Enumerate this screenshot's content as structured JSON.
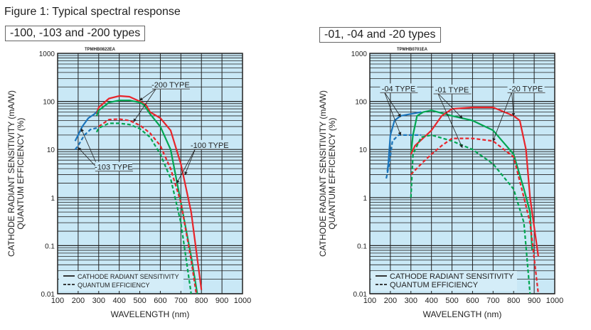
{
  "figure_title": "Figure 1: Typical spectral response",
  "colors": {
    "background": "#c9e8f6",
    "red": "#e8252b",
    "green": "#00a651",
    "blue": "#1b75bb",
    "grid": "#222222"
  },
  "chart_data": [
    {
      "type": "line",
      "title": "-100, -103 and -200 types",
      "code": "TPMHB0822EA",
      "xlabel": "WAVELENGTH (nm)",
      "ylabel": [
        "CATHODE RADIANT SENSITIVITY (mA/W)",
        "QUANTUM EFFICIENCY (%)"
      ],
      "xlim": [
        100,
        1000
      ],
      "ylim": [
        0.01,
        1000
      ],
      "yscale": "log",
      "xticks": [
        "100",
        "200",
        "300",
        "400",
        "500",
        "600",
        "700",
        "800",
        "900",
        "1000"
      ],
      "yticks": [
        "1000",
        "100",
        "10",
        "1",
        "0.1",
        "0.01"
      ],
      "legend": {
        "position": "bottom-left",
        "entries": [
          "CATHODE RADIANT SENSITIVITY",
          "QUANTUM EFFICIENCY"
        ]
      },
      "series": [
        {
          "name": "-103 TYPE radiant sensitivity",
          "color": "blue",
          "dash": false,
          "x": [
            185,
            200,
            220,
            250,
            280,
            300
          ],
          "y": [
            15,
            20,
            30,
            45,
            55,
            68
          ]
        },
        {
          "name": "-103 TYPE quantum efficiency",
          "color": "blue",
          "dash": true,
          "x": [
            185,
            200,
            230,
            260,
            290
          ],
          "y": [
            10,
            12,
            20,
            26,
            28
          ]
        },
        {
          "name": "-200 TYPE radiant sensitivity",
          "color": "red",
          "dash": false,
          "x": [
            290,
            300,
            350,
            400,
            450,
            500,
            530,
            550,
            600,
            650,
            700,
            750,
            800
          ],
          "y": [
            55,
            75,
            115,
            130,
            125,
            100,
            85,
            60,
            45,
            25,
            5,
            0.5,
            0.012
          ]
        },
        {
          "name": "-100 TYPE radiant sensitivity",
          "color": "green",
          "dash": false,
          "x": [
            290,
            300,
            350,
            400,
            450,
            500,
            520,
            550,
            600,
            650,
            700,
            750,
            780
          ],
          "y": [
            50,
            65,
            95,
            105,
            105,
            95,
            85,
            55,
            30,
            10,
            0.8,
            0.06,
            0.01
          ]
        },
        {
          "name": "-200 TYPE quantum efficiency",
          "color": "red",
          "dash": true,
          "x": [
            300,
            350,
            400,
            450,
            500,
            550,
            600,
            650,
            700,
            750,
            775
          ],
          "y": [
            30,
            42,
            43,
            40,
            32,
            22,
            12,
            4,
            0.8,
            0.05,
            0.01
          ]
        },
        {
          "name": "-100 TYPE quantum efficiency",
          "color": "green",
          "dash": true,
          "x": [
            290,
            300,
            350,
            400,
            450,
            500,
            550,
            600,
            650,
            700,
            750
          ],
          "y": [
            23,
            28,
            35,
            35,
            33,
            27,
            18,
            8,
            2.5,
            0.3,
            0.01
          ]
        }
      ],
      "annotations": [
        {
          "text": "-200 TYPE",
          "x": 650,
          "y": 215,
          "targets": [
            [
              500,
              105
            ],
            [
              470,
              38
            ]
          ]
        },
        {
          "text": "-100 TYPE",
          "x": 840,
          "y": 12,
          "targets": [
            [
              720,
              3
            ],
            [
              680,
              2
            ]
          ]
        },
        {
          "text": "-103 TYPE",
          "x": 373,
          "y": 4.2,
          "targets": [
            [
              215,
              27
            ],
            [
              200,
              11
            ]
          ]
        }
      ]
    },
    {
      "type": "line",
      "title": "-01, -04 and -20 types",
      "code": "TPMHB0701EA",
      "xlabel": "WAVELENGTH (nm)",
      "ylabel": [
        "CATHODE RADIANT SENSITIVITY (mA/W)",
        "QUANTUM EFFICIENCY (%)"
      ],
      "xlim": [
        100,
        1000
      ],
      "ylim": [
        0.01,
        1000
      ],
      "yscale": "log",
      "xticks": [
        "100",
        "200",
        "300",
        "400",
        "500",
        "600",
        "700",
        "800",
        "900",
        "1000"
      ],
      "yticks": [
        "1000",
        "100",
        "10",
        "1",
        "0.1",
        "0.01"
      ],
      "legend": {
        "position": "bottom-left",
        "entries": [
          "CATHODE RADIANT SENSITIVITY",
          "QUANTUM EFFICIENCY"
        ]
      },
      "series": [
        {
          "name": "-04 TYPE radiant sensitivity",
          "color": "blue",
          "dash": false,
          "x": [
            185,
            190,
            200,
            220,
            250,
            300,
            350
          ],
          "y": [
            3.5,
            5,
            20,
            40,
            50,
            55,
            60
          ]
        },
        {
          "name": "-04 TYPE quantum efficiency",
          "color": "blue",
          "dash": true,
          "x": [
            180,
            195,
            210,
            240,
            300,
            350
          ],
          "y": [
            2.5,
            5,
            15,
            20,
            20,
            20
          ]
        },
        {
          "name": "-01 TYPE radiant sensitivity",
          "color": "green",
          "dash": false,
          "x": [
            300,
            310,
            330,
            360,
            400,
            500,
            600,
            700,
            800,
            850,
            880,
            890
          ],
          "y": [
            8,
            20,
            50,
            60,
            65,
            50,
            40,
            25,
            8,
            1.5,
            0.5,
            0.08
          ]
        },
        {
          "name": "-20 TYPE radiant sensitivity",
          "color": "red",
          "dash": false,
          "x": [
            300,
            320,
            400,
            450,
            500,
            600,
            700,
            800,
            830,
            860,
            880,
            920
          ],
          "y": [
            8,
            12,
            25,
            50,
            70,
            75,
            75,
            50,
            40,
            10,
            1,
            0.06
          ]
        },
        {
          "name": "-01 TYPE quantum efficiency",
          "color": "green",
          "dash": true,
          "x": [
            300,
            310,
            350,
            400,
            500,
            600,
            700,
            800,
            850,
            880
          ],
          "y": [
            1,
            8,
            18,
            20,
            15,
            10,
            5,
            1.5,
            0.3,
            0.01
          ]
        },
        {
          "name": "-20 TYPE quantum efficiency",
          "color": "red",
          "dash": true,
          "x": [
            300,
            350,
            400,
            450,
            500,
            600,
            700,
            800,
            850,
            880,
            920
          ],
          "y": [
            3,
            5,
            8,
            12,
            17,
            17,
            15,
            7,
            1,
            0.3,
            0.01
          ]
        }
      ],
      "annotations": [
        {
          "text": "-04 TYPE",
          "x": 240,
          "y": 180,
          "targets": [
            [
              250,
              48
            ],
            [
              250,
              20
            ]
          ]
        },
        {
          "text": "-01 TYPE",
          "x": 500,
          "y": 170,
          "targets": [
            [
              550,
              45
            ],
            [
              550,
              11
            ]
          ]
        },
        {
          "text": "-20 TYPE",
          "x": 860,
          "y": 180,
          "targets": [
            [
              800,
              50
            ],
            [
              700,
              15
            ]
          ]
        }
      ]
    }
  ]
}
